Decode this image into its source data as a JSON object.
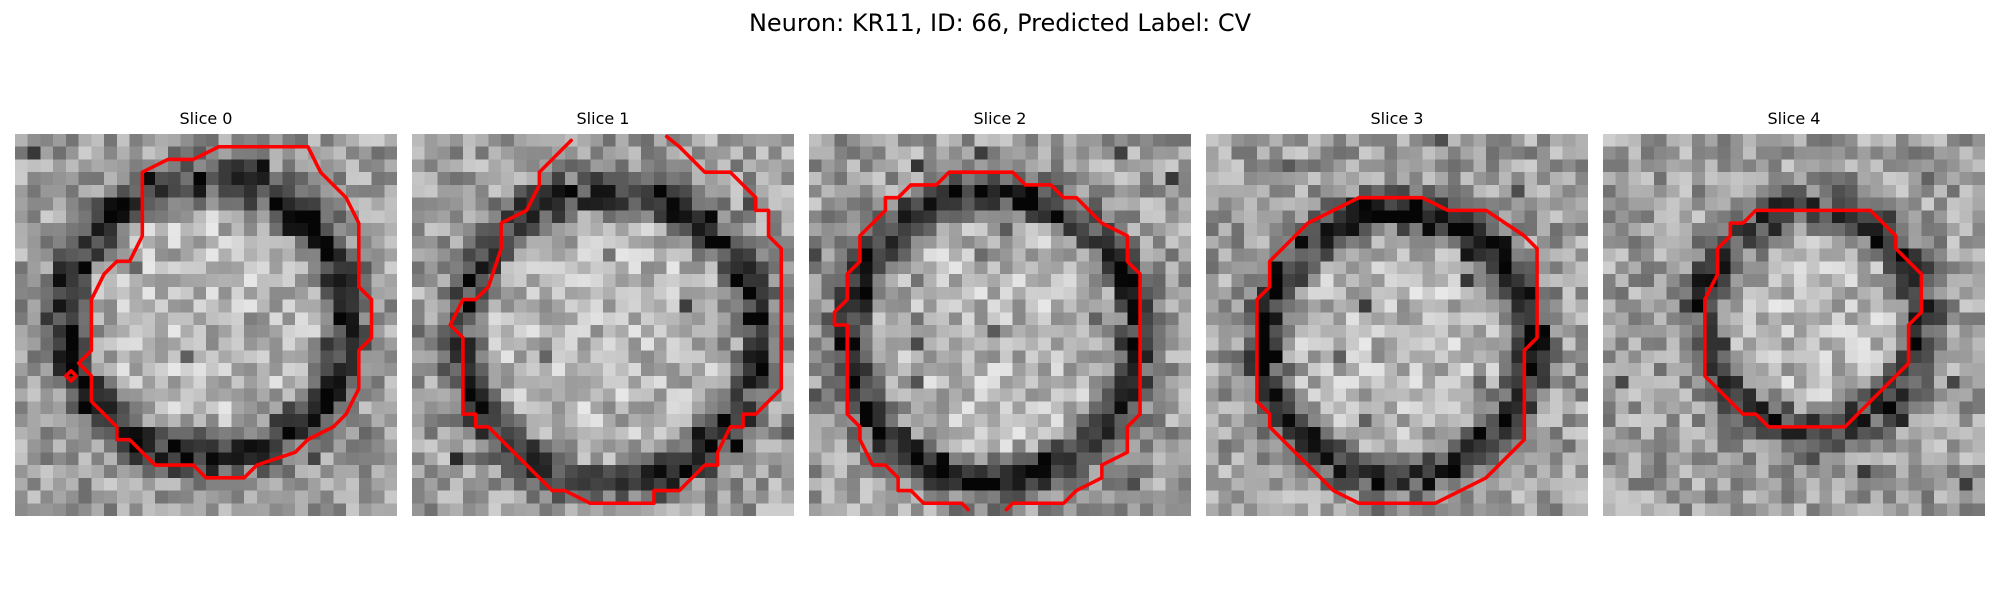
{
  "figure": {
    "title": "Neuron: KR11, ID: 66, Predicted Label: CV"
  },
  "colors": {
    "contour": "#ff0000",
    "background": "#ffffff"
  },
  "panels": [
    {
      "title": "Slice 0",
      "ring_fraction": 0.85,
      "ring_darkness": 0.55,
      "contour": "red-outline"
    },
    {
      "title": "Slice 1",
      "ring_fraction": 0.9,
      "ring_darkness": 0.5,
      "contour": "red-outline"
    },
    {
      "title": "Slice 2",
      "ring_fraction": 0.88,
      "ring_darkness": 0.55,
      "contour": "red-outline"
    },
    {
      "title": "Slice 3",
      "ring_fraction": 0.8,
      "ring_darkness": 0.55,
      "contour": "red-outline"
    },
    {
      "title": "Slice 4",
      "ring_fraction": 0.65,
      "ring_darkness": 0.45,
      "contour": "red-outline"
    }
  ]
}
